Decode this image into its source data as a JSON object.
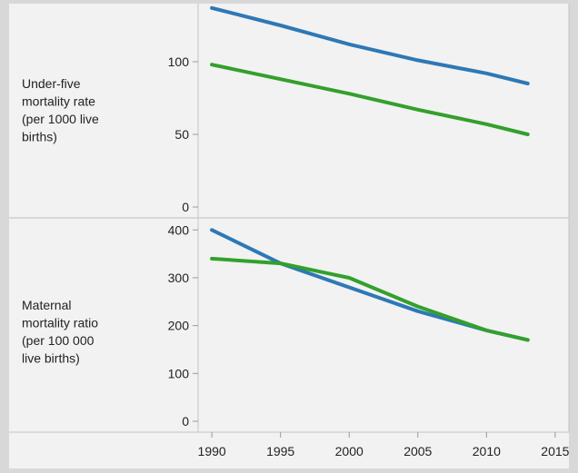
{
  "chart_data": {
    "type": "line",
    "colors": {
      "series_a": "#2e78b5",
      "series_b": "#33a02c"
    },
    "panels": [
      {
        "row_label": [
          "Under-five",
          "mortality rate",
          "(per 1000 live",
          "births)"
        ],
        "ylim": [
          0,
          140
        ],
        "yticks": [
          0,
          50,
          100
        ],
        "series": [
          {
            "color": "#2e78b5",
            "x": [
              1990,
              1995,
              2000,
              2005,
              2010,
              2013
            ],
            "y": [
              137,
              125,
              112,
              101,
              92,
              85
            ]
          },
          {
            "color": "#33a02c",
            "x": [
              1990,
              1995,
              2000,
              2005,
              2010,
              2013
            ],
            "y": [
              98,
              88,
              78,
              67,
              57,
              50
            ]
          }
        ]
      },
      {
        "row_label": [
          "Maternal",
          "mortality ratio",
          "(per 100 000",
          "live births)"
        ],
        "ylim": [
          0,
          410
        ],
        "yticks": [
          0,
          100,
          200,
          300,
          400
        ],
        "series": [
          {
            "color": "#2e78b5",
            "x": [
              1990,
              1995,
              2000,
              2005,
              2010,
              2013
            ],
            "y": [
              400,
              330,
              280,
              230,
              190,
              170
            ]
          },
          {
            "color": "#33a02c",
            "x": [
              1990,
              1995,
              2000,
              2005,
              2010,
              2013
            ],
            "y": [
              340,
              330,
              300,
              240,
              190,
              170
            ]
          }
        ]
      }
    ],
    "xticks": [
      1990,
      1995,
      2000,
      2005,
      2010,
      2015
    ],
    "xlim": [
      1989,
      2016
    ],
    "grid": false
  }
}
